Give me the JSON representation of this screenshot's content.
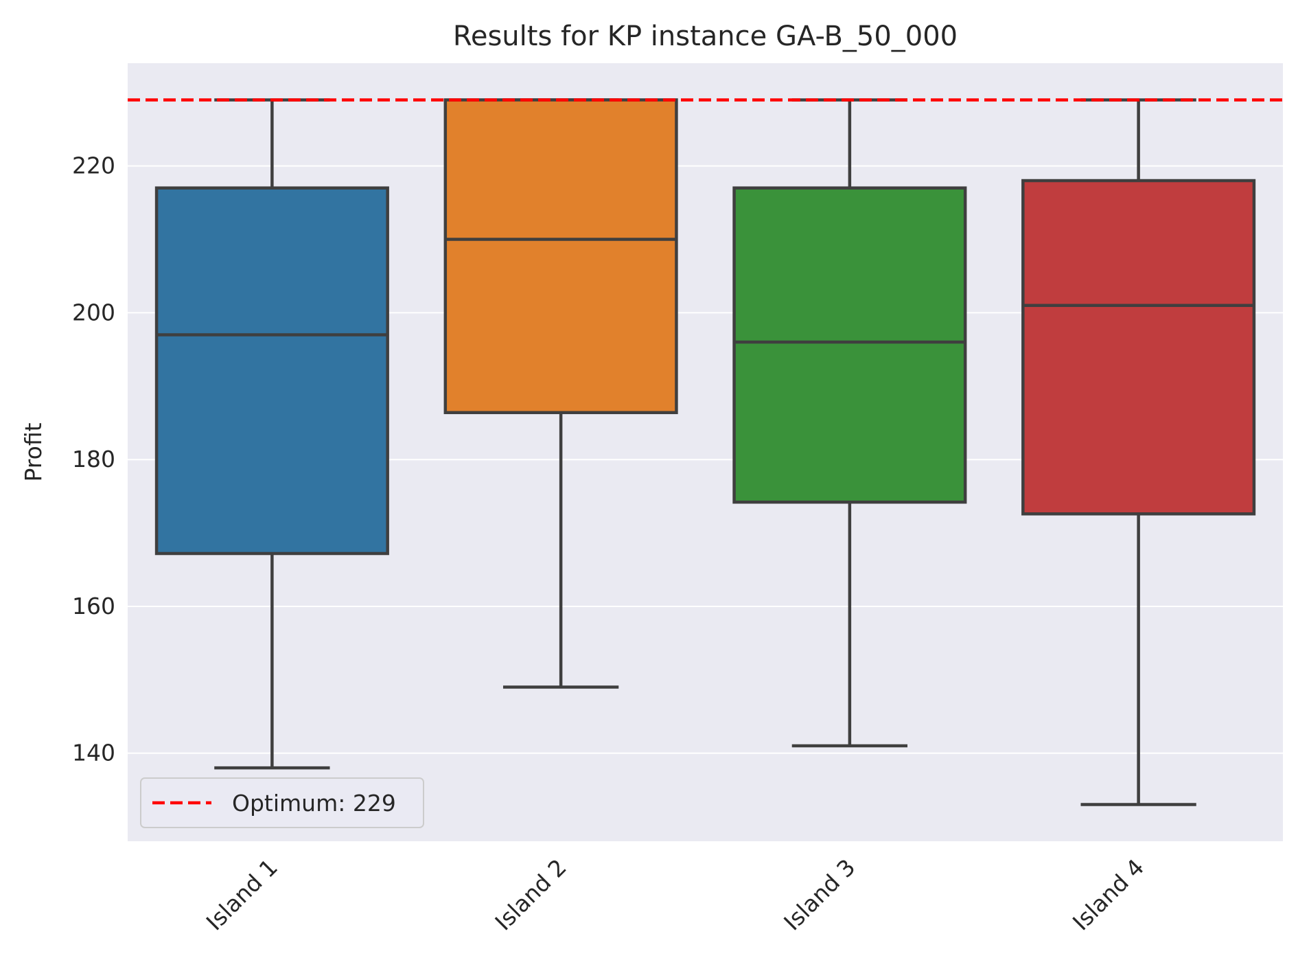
{
  "chart_data": {
    "type": "box",
    "title": "Results for KP instance GA-B_50_000",
    "xlabel": "",
    "ylabel": "Profit",
    "ylim": [
      128,
      234
    ],
    "yticks": [
      140,
      160,
      180,
      200,
      220
    ],
    "grid": true,
    "legend_position": "lower-left",
    "reference_line": {
      "label": "Optimum: 229",
      "value": 229,
      "color": "#ff0000",
      "style": "dashed"
    },
    "categories": [
      "Island 1",
      "Island 2",
      "Island 3",
      "Island 4"
    ],
    "boxes": [
      {
        "category": "Island 1",
        "color": "#3274a1",
        "whisker_low": 138,
        "q1": 167.2,
        "median": 197,
        "q3": 217,
        "whisker_high": 229
      },
      {
        "category": "Island 2",
        "color": "#e1812c",
        "whisker_low": 149,
        "q1": 186.4,
        "median": 210,
        "q3": 229,
        "whisker_high": 229
      },
      {
        "category": "Island 3",
        "color": "#3a923a",
        "whisker_low": 141,
        "q1": 174.2,
        "median": 196,
        "q3": 217,
        "whisker_high": 229
      },
      {
        "category": "Island 4",
        "color": "#c03d3e",
        "whisker_low": 133,
        "q1": 172.6,
        "median": 201,
        "q3": 218,
        "whisker_high": 229
      }
    ]
  }
}
